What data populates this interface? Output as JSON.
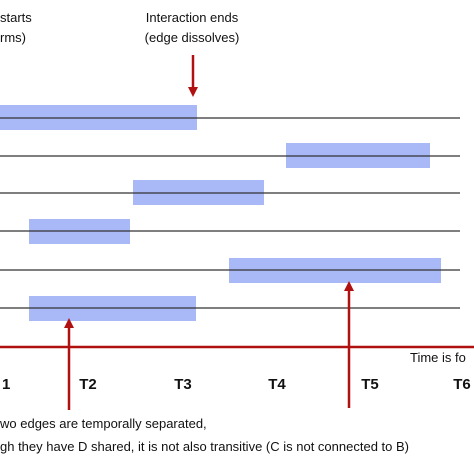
{
  "annotations": {
    "start_line1": "starts",
    "start_line2": "rms)",
    "end_line1": "Interaction ends",
    "end_line2": "(edge dissolves)"
  },
  "axis": {
    "label": "Time is fo",
    "ticks": [
      "1",
      "T2",
      "T3",
      "T4",
      "T5",
      "T6"
    ]
  },
  "footer": {
    "line1": "wo edges are temporally separated,",
    "line2": "gh they have D shared, it is not also transitive (C is not connected to B)"
  }
}
